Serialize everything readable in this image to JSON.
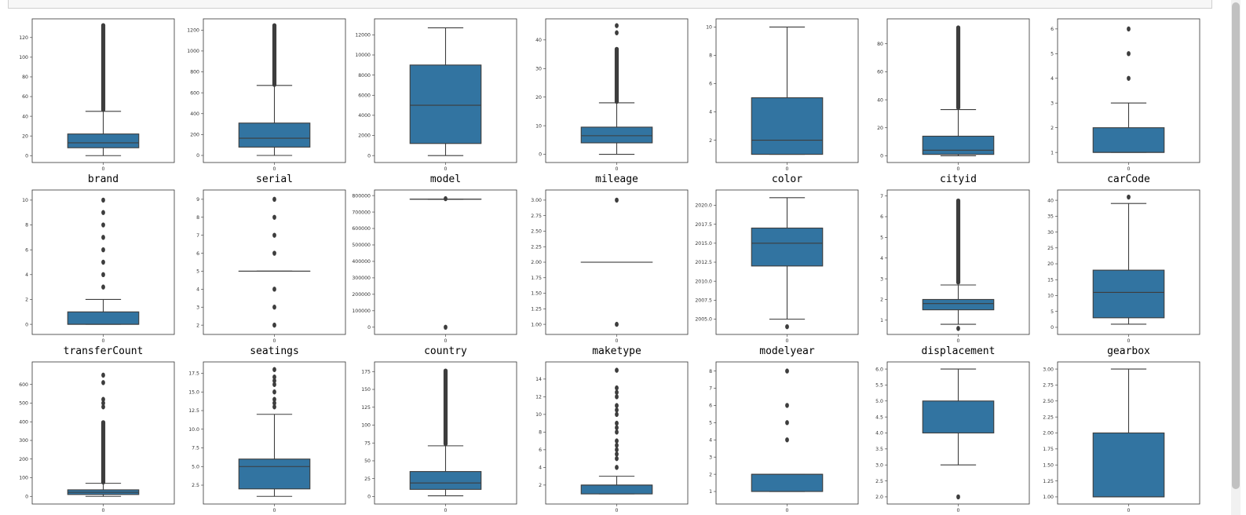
{
  "colors": {
    "box": "#3274a1",
    "line": "#3d3d3d",
    "frame": "#333333"
  },
  "chart_data": [
    {
      "type": "box",
      "xlabel": "brand",
      "xtick": "0",
      "yticks": [
        "0",
        "20",
        "40",
        "60",
        "80",
        "100",
        "120"
      ],
      "ylim": [
        -3,
        135
      ],
      "box": {
        "min": 0,
        "q1": 8,
        "median": 13,
        "q3": 22,
        "max": 45
      },
      "outliers": [
        [
          46,
          133
        ]
      ]
    },
    {
      "type": "box",
      "xlabel": "serial",
      "xtick": "0",
      "yticks": [
        "0",
        "200",
        "400",
        "600",
        "800",
        "1000",
        "1200"
      ],
      "ylim": [
        -30,
        1270
      ],
      "box": {
        "min": 0,
        "q1": 80,
        "median": 165,
        "q3": 310,
        "max": 670
      },
      "outliers": [
        [
          672,
          1250
        ]
      ]
    },
    {
      "type": "box",
      "xlabel": "model",
      "xtick": "0",
      "yticks": [
        "0",
        "2000",
        "4000",
        "6000",
        "8000",
        "10000",
        "12000"
      ],
      "ylim": [
        -300,
        13200
      ],
      "box": {
        "min": 0,
        "q1": 1200,
        "median": 5000,
        "q3": 9000,
        "max": 12700
      },
      "outliers": []
    },
    {
      "type": "box",
      "xlabel": "mileage",
      "xtick": "0",
      "yticks": [
        "0",
        "10",
        "20",
        "30",
        "40"
      ],
      "ylim": [
        -1.5,
        46
      ],
      "box": {
        "min": 0,
        "q1": 4,
        "median": 6.5,
        "q3": 9.5,
        "max": 18
      },
      "outliers": [
        [
          18.2,
          37
        ],
        42.5,
        45
      ]
    },
    {
      "type": "box",
      "xlabel": "color",
      "xtick": "0",
      "yticks": [
        "2",
        "4",
        "6",
        "8",
        "10"
      ],
      "ylim": [
        0.7,
        10.3
      ],
      "box": {
        "min": 1,
        "q1": 1,
        "median": 2,
        "q3": 5,
        "max": 10
      },
      "outliers": []
    },
    {
      "type": "box",
      "xlabel": "cityid",
      "xtick": "0",
      "yticks": [
        "0",
        "20",
        "40",
        "60",
        "80"
      ],
      "ylim": [
        -2,
        95
      ],
      "box": {
        "min": 0,
        "q1": 1,
        "median": 4,
        "q3": 14,
        "max": 33
      },
      "outliers": [
        [
          34,
          92
        ]
      ]
    },
    {
      "type": "box",
      "xlabel": "carCode",
      "xtick": "0",
      "yticks": [
        "1",
        "2",
        "3",
        "4",
        "5",
        "6"
      ],
      "ylim": [
        0.75,
        6.25
      ],
      "box": {
        "min": 1,
        "q1": 1,
        "median": 1,
        "q3": 2,
        "max": 3
      },
      "outliers": [
        4,
        5,
        6
      ]
    },
    {
      "type": "box",
      "xlabel": "transferCount",
      "xtick": "0",
      "yticks": [
        "0",
        "2",
        "4",
        "6",
        "8",
        "10"
      ],
      "ylim": [
        -0.5,
        10.5
      ],
      "box": {
        "min": 0,
        "q1": 0,
        "median": 0,
        "q3": 1,
        "max": 2
      },
      "outliers": [
        3,
        4,
        5,
        6,
        7,
        8,
        9,
        10
      ]
    },
    {
      "type": "box",
      "xlabel": "seatings",
      "xtick": "0",
      "yticks": [
        "2",
        "3",
        "4",
        "5",
        "6",
        "7",
        "8",
        "9"
      ],
      "ylim": [
        1.7,
        9.3
      ],
      "box": {
        "min": 5,
        "q1": 5,
        "median": 5,
        "q3": 5,
        "max": 5
      },
      "outliers": [
        2,
        3,
        4,
        6,
        7,
        8,
        9
      ]
    },
    {
      "type": "box",
      "xlabel": "country",
      "xtick": "0",
      "yticks": [
        "0",
        "100000",
        "200000",
        "300000",
        "400000",
        "500000",
        "600000",
        "700000",
        "800000"
      ],
      "ylim": [
        -20000,
        810000
      ],
      "box": {
        "min": 778000,
        "q1": 778000,
        "median": 778000,
        "q3": 778000,
        "max": 778000
      },
      "outliers": [
        0,
        781000
      ]
    },
    {
      "type": "box",
      "xlabel": "maketype",
      "xtick": "0",
      "yticks": [
        "1.00",
        "1.25",
        "1.50",
        "1.75",
        "2.00",
        "2.25",
        "2.50",
        "2.75",
        "3.00"
      ],
      "ylim": [
        0.9,
        3.1
      ],
      "box": {
        "min": 2,
        "q1": 2,
        "median": 2,
        "q3": 2,
        "max": 2
      },
      "outliers": [
        1,
        3
      ]
    },
    {
      "type": "box",
      "xlabel": "modelyear",
      "xtick": "0",
      "yticks": [
        "2005.0",
        "2007.5",
        "2010.0",
        "2012.5",
        "2015.0",
        "2017.5",
        "2020.0"
      ],
      "ylim": [
        2003.5,
        2021.5
      ],
      "box": {
        "min": 2005,
        "q1": 2012,
        "median": 2015,
        "q3": 2017,
        "max": 2021
      },
      "outliers": [
        2004
      ]
    },
    {
      "type": "box",
      "xlabel": "displacement",
      "xtick": "0",
      "yticks": [
        "1",
        "2",
        "3",
        "4",
        "5",
        "6",
        "7"
      ],
      "ylim": [
        0.5,
        7.1
      ],
      "box": {
        "min": 0.8,
        "q1": 1.5,
        "median": 1.8,
        "q3": 2,
        "max": 2.7
      },
      "outliers": [
        0.6,
        [
          2.8,
          6.8
        ]
      ]
    },
    {
      "type": "box",
      "xlabel": "gearbox",
      "xtick": "0",
      "yticks": [
        "0",
        "5",
        "10",
        "15",
        "20",
        "25",
        "30",
        "35",
        "40"
      ],
      "ylim": [
        -1,
        42
      ],
      "box": {
        "min": 1,
        "q1": 3,
        "median": 11,
        "q3": 18,
        "max": 39
      },
      "outliers": [
        41
      ]
    },
    {
      "type": "box",
      "xlabel": "",
      "xtick": "0",
      "yticks": [
        "0",
        "100",
        "200",
        "300",
        "400",
        "500",
        "600"
      ],
      "ylim": [
        -20,
        700
      ],
      "box": {
        "min": 0,
        "q1": 10,
        "median": 22,
        "q3": 35,
        "max": 70
      },
      "outliers": [
        [
          72,
          400
        ],
        480,
        500,
        520,
        610,
        650
      ]
    },
    {
      "type": "box",
      "xlabel": "",
      "xtick": "0",
      "yticks": [
        "2.5",
        "5.0",
        "7.5",
        "10.0",
        "12.5",
        "15.0",
        "17.5"
      ],
      "ylim": [
        0.5,
        18.5
      ],
      "box": {
        "min": 1,
        "q1": 2,
        "median": 5,
        "q3": 6,
        "max": 12
      },
      "outliers": [
        13,
        13.5,
        14,
        15,
        16,
        16.5,
        17,
        18
      ]
    },
    {
      "type": "box",
      "xlabel": "",
      "xtick": "0",
      "yticks": [
        "0",
        "25",
        "50",
        "75",
        "100",
        "125",
        "150",
        "175"
      ],
      "ylim": [
        -5,
        183
      ],
      "box": {
        "min": 1,
        "q1": 10,
        "median": 19,
        "q3": 35,
        "max": 71
      },
      "outliers": [
        [
          73,
          177
        ]
      ]
    },
    {
      "type": "box",
      "xlabel": "",
      "xtick": "0",
      "yticks": [
        "2",
        "4",
        "6",
        "8",
        "10",
        "12",
        "14"
      ],
      "ylim": [
        0.3,
        15.5
      ],
      "box": {
        "min": 1,
        "q1": 1,
        "median": 2,
        "q3": 2,
        "max": 3
      },
      "outliers": [
        4,
        5,
        5.5,
        6,
        6.5,
        7,
        8,
        8.5,
        9,
        10,
        10.5,
        11,
        12,
        12.5,
        13,
        15
      ]
    },
    {
      "type": "box",
      "xlabel": "",
      "xtick": "0",
      "yticks": [
        "1",
        "2",
        "3",
        "4",
        "5",
        "6",
        "7",
        "8"
      ],
      "ylim": [
        0.5,
        8.3
      ],
      "box": {
        "min": 1,
        "q1": 1,
        "median": 2,
        "q3": 2,
        "max": 2
      },
      "outliers": [
        4,
        5,
        6,
        8
      ]
    },
    {
      "type": "box",
      "xlabel": "",
      "xtick": "0",
      "yticks": [
        "2.0",
        "2.5",
        "3.0",
        "3.5",
        "4.0",
        "4.5",
        "5.0",
        "5.5",
        "6.0"
      ],
      "ylim": [
        1.9,
        6.1
      ],
      "box": {
        "min": 3,
        "q1": 4,
        "median": 4,
        "q3": 5,
        "max": 6
      },
      "outliers": [
        2
      ]
    },
    {
      "type": "box",
      "xlabel": "",
      "xtick": "0",
      "yticks": [
        "1.00",
        "1.25",
        "1.50",
        "1.75",
        "2.00",
        "2.25",
        "2.50",
        "2.75",
        "3.00"
      ],
      "ylim": [
        0.95,
        3.05
      ],
      "box": {
        "min": 1,
        "q1": 1,
        "median": 1,
        "q3": 2,
        "max": 3
      },
      "outliers": []
    }
  ]
}
